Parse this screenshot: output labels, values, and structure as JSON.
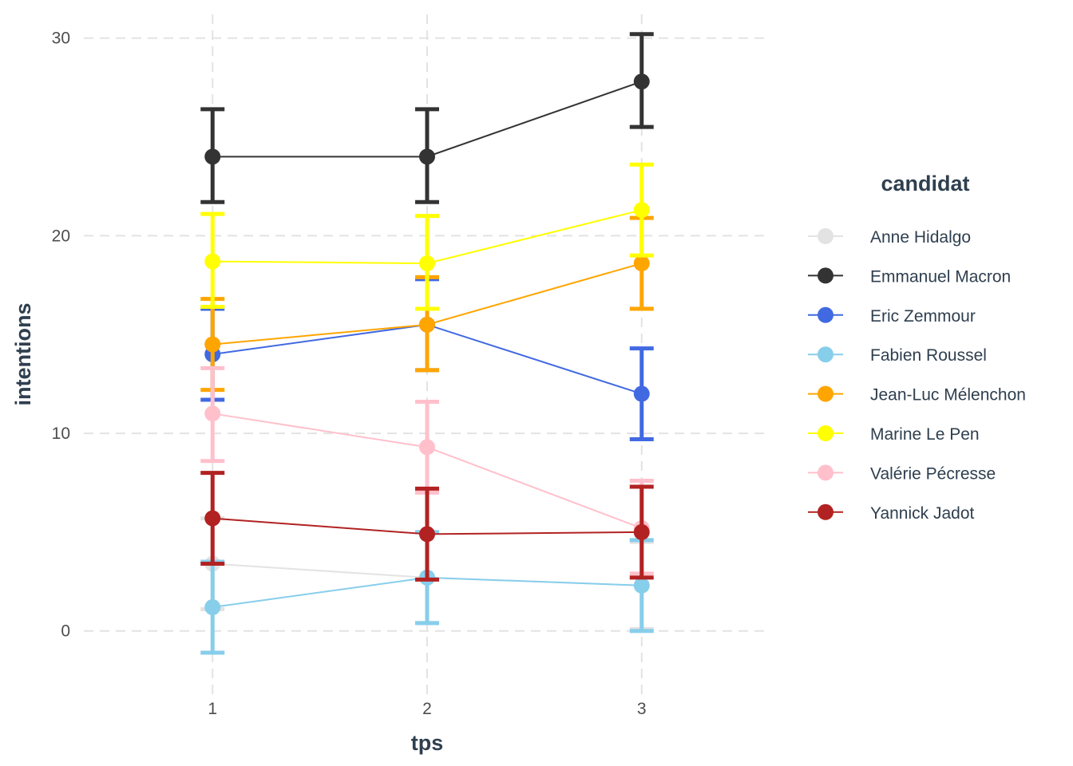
{
  "chart_data": {
    "type": "line",
    "xlabel": "tps",
    "ylabel": "intentions",
    "x": [
      1,
      2,
      3
    ],
    "x_ticks": [
      "1",
      "2",
      "3"
    ],
    "y_ticks": [
      "0",
      "10",
      "20",
      "30"
    ],
    "xlim": [
      0.4,
      3.6
    ],
    "ylim": [
      -3.2,
      31.2
    ],
    "grid": true,
    "error_bars": true,
    "legend": {
      "title": "candidat",
      "position": "right"
    },
    "series": [
      {
        "name": "Anne Hidalgo",
        "color": "#e3e3e3",
        "values": [
          3.4,
          2.7,
          2.3
        ],
        "lower": [
          1.1,
          0.4,
          0.1
        ],
        "upper": [
          5.7,
          5.0,
          4.5
        ]
      },
      {
        "name": "Emmanuel Macron",
        "color": "#333333",
        "values": [
          24.0,
          24.0,
          27.8
        ],
        "lower": [
          21.7,
          21.7,
          25.5
        ],
        "upper": [
          26.4,
          26.4,
          30.2
        ]
      },
      {
        "name": "Eric Zemmour",
        "color": "#4169e1",
        "values": [
          14.0,
          15.5,
          12.0
        ],
        "lower": [
          11.7,
          13.2,
          9.7
        ],
        "upper": [
          16.3,
          17.8,
          14.3
        ]
      },
      {
        "name": "Fabien Roussel",
        "color": "#87ceeb",
        "values": [
          1.2,
          2.7,
          2.3
        ],
        "lower": [
          -1.1,
          0.4,
          0.0
        ],
        "upper": [
          3.5,
          5.0,
          4.6
        ]
      },
      {
        "name": "Jean-Luc Mélenchon",
        "color": "#ffa500",
        "values": [
          14.5,
          15.5,
          18.6
        ],
        "lower": [
          12.2,
          13.2,
          16.3
        ],
        "upper": [
          16.8,
          17.9,
          20.9
        ]
      },
      {
        "name": "Marine Le Pen",
        "color": "#ffff00",
        "values": [
          18.7,
          18.6,
          21.3
        ],
        "lower": [
          16.4,
          16.3,
          19.0
        ],
        "upper": [
          21.1,
          21.0,
          23.6
        ]
      },
      {
        "name": "Valérie Pécresse",
        "color": "#ffc0cb",
        "values": [
          11.0,
          9.3,
          5.2
        ],
        "lower": [
          8.6,
          7.0,
          2.9
        ],
        "upper": [
          13.3,
          11.6,
          7.6
        ]
      },
      {
        "name": "Yannick Jadot",
        "color": "#b22222",
        "values": [
          5.7,
          4.9,
          5.0
        ],
        "lower": [
          3.4,
          2.6,
          2.7
        ],
        "upper": [
          8.0,
          7.2,
          7.3
        ]
      }
    ]
  }
}
